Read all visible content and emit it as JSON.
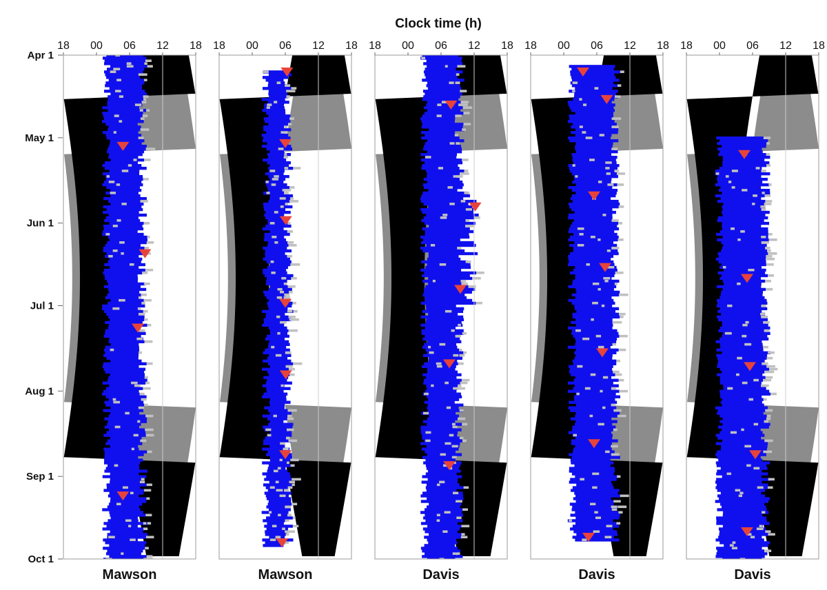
{
  "chart_data": {
    "type": "other",
    "title": "Clock time (h)",
    "x_ticks": [
      "18",
      "00",
      "06",
      "12",
      "18"
    ],
    "y_ticks": [
      "Apr 1",
      "May 1",
      "Jun 1",
      "Jul 1",
      "Aug 1",
      "Sep 1",
      "Oct 1"
    ],
    "date_range": [
      "Apr 1",
      "Oct 1"
    ],
    "panels": [
      {
        "label": "Mawson",
        "sleep_start_date": "Apr 1",
        "sleep_end_date": "Oct 1",
        "onset_h": 1.8,
        "wake_h": 8.0,
        "markers": [
          {
            "date": "May 4",
            "time_h": 4.8
          },
          {
            "date": "Jun 12",
            "time_h": 8.8
          },
          {
            "date": "Jul 9",
            "time_h": 7.5
          },
          {
            "date": "Sep 8",
            "time_h": 4.8
          }
        ]
      },
      {
        "label": "Mawson",
        "sleep_start_date": "Apr 7",
        "sleep_end_date": "Sep 26",
        "onset_h": 2.5,
        "wake_h": 6.2,
        "markers": [
          {
            "date": "Apr 7",
            "time_h": 6.3
          },
          {
            "date": "May 3",
            "time_h": 6.0
          },
          {
            "date": "May 31",
            "time_h": 6.1
          },
          {
            "date": "Jun 30",
            "time_h": 6.0
          },
          {
            "date": "Jul 26",
            "time_h": 6.1
          },
          {
            "date": "Aug 24",
            "time_h": 6.0
          },
          {
            "date": "Sep 25",
            "time_h": 5.4
          }
        ]
      },
      {
        "label": "Davis",
        "sleep_start_date": "Apr 1",
        "sleep_end_date": "Oct 1",
        "onset_h": 3.0,
        "wake_h": 9.0,
        "markers": [
          {
            "date": "Apr 19",
            "time_h": 7.8
          },
          {
            "date": "May 26",
            "time_h": 12.2
          },
          {
            "date": "Jun 25",
            "time_h": 9.5
          },
          {
            "date": "Jul 22",
            "time_h": 7.5
          },
          {
            "date": "Aug 28",
            "time_h": 7.5
          }
        ]
      },
      {
        "label": "Davis",
        "sleep_start_date": "Apr 5",
        "sleep_end_date": "Sep 24",
        "onset_h": 1.5,
        "wake_h": 9.0,
        "markers": [
          {
            "date": "Apr 7",
            "time_h": 3.5
          },
          {
            "date": "Apr 17",
            "time_h": 7.8
          },
          {
            "date": "May 22",
            "time_h": 5.5
          },
          {
            "date": "Jun 17",
            "time_h": 7.5
          },
          {
            "date": "Jul 18",
            "time_h": 7.0
          },
          {
            "date": "Aug 20",
            "time_h": 5.5
          },
          {
            "date": "Sep 23",
            "time_h": 4.5
          }
        ]
      },
      {
        "label": "Davis",
        "sleep_start_date": "May 1",
        "sleep_end_date": "Oct 1",
        "onset_h": 0.0,
        "wake_h": 8.0,
        "markers": [
          {
            "date": "May 7",
            "time_h": 4.5
          },
          {
            "date": "Jun 21",
            "time_h": 5.0
          },
          {
            "date": "Jul 23",
            "time_h": 5.5
          },
          {
            "date": "Aug 24",
            "time_h": 6.5
          },
          {
            "date": "Sep 21",
            "time_h": 5.0
          }
        ]
      }
    ],
    "colors": {
      "night": "#000000",
      "twilight": "#8c8c8c",
      "daylight": "#ffffff",
      "sleep": "#1010ee",
      "sleep_light": "#c0c0c0",
      "marker": "#e8433a",
      "grid": "#cccccc"
    }
  }
}
